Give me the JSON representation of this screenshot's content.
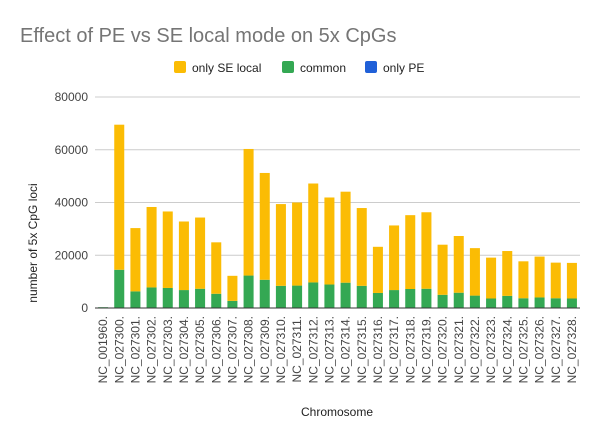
{
  "chart_data": {
    "type": "bar",
    "stacked": true,
    "title": "Effect of PE vs SE local mode on 5x CpGs",
    "xlabel": "Chromosome",
    "ylabel": "number of 5x CpG loci",
    "ylim": [
      0,
      80000
    ],
    "yticks": [
      "0",
      "20000",
      "40000",
      "60000",
      "80000"
    ],
    "grid": true,
    "legend_position": "top",
    "categories": [
      "NC_001960.",
      "NC_027300.",
      "NC_027301.",
      "NC_027302.",
      "NC_027303.",
      "NC_027304.",
      "NC_027305.",
      "NC_027306.",
      "NC_027307.",
      "NC_027308.",
      "NC_027309.",
      "NC_027310.",
      "NC_027311.",
      "NC_027312.",
      "NC_027313.",
      "NC_027314.",
      "NC_027315.",
      "NC_027316.",
      "NC_027317.",
      "NC_027318.",
      "NC_027319.",
      "NC_027320.",
      "NC_027321.",
      "NC_027322.",
      "NC_027323.",
      "NC_027324.",
      "NC_027325.",
      "NC_027326.",
      "NC_027327.",
      "NC_027328."
    ],
    "series": [
      {
        "name": "only SE local",
        "color": "#fbbc04",
        "values": [
          0,
          55000,
          24000,
          30500,
          29000,
          26000,
          27000,
          19500,
          9500,
          48000,
          40500,
          31000,
          31500,
          37500,
          33000,
          34500,
          29500,
          17500,
          24500,
          28000,
          29000,
          19000,
          21500,
          18000,
          15500,
          17000,
          14000,
          15500,
          13500,
          13500
        ]
      },
      {
        "name": "common",
        "color": "#34a853",
        "values": [
          300,
          14500,
          6300,
          7800,
          7600,
          6800,
          7300,
          5400,
          2700,
          12300,
          10700,
          8400,
          8500,
          9700,
          8900,
          9600,
          8400,
          5700,
          6800,
          7200,
          7300,
          5000,
          5800,
          4700,
          3600,
          4600,
          3700,
          4000,
          3700,
          3600
        ]
      },
      {
        "name": "only PE",
        "color": "#2060d8",
        "values": [
          0,
          0,
          0,
          0,
          0,
          0,
          0,
          0,
          0,
          0,
          0,
          0,
          0,
          0,
          0,
          0,
          0,
          0,
          0,
          0,
          0,
          0,
          0,
          0,
          0,
          0,
          0,
          0,
          0,
          0
        ]
      }
    ]
  }
}
